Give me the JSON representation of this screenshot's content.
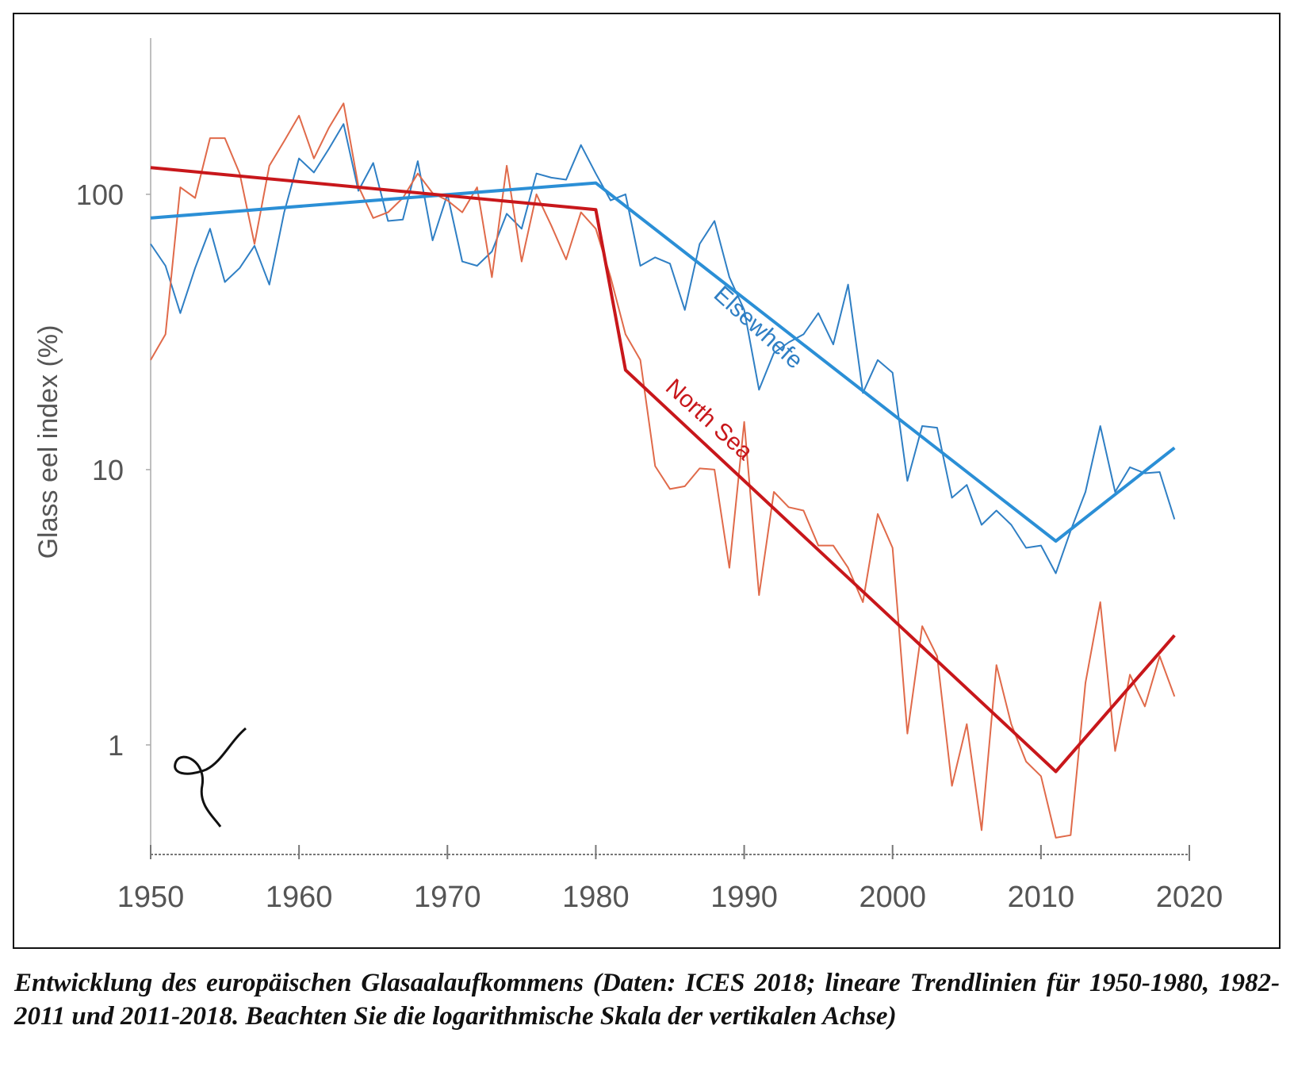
{
  "chart_data": {
    "type": "line",
    "ylabel": "Glass eel index (%)",
    "caption": "Entwicklung des europäischen Glasaalaufkommens (Daten: ICES 2018; lineare Trendlinien für 1950-1980, 1982-2011 und 2011-2018. Beachten Sie die logarithmische Skala der vertikalen Achse)",
    "log_y": true,
    "xlim": [
      1950,
      2020
    ],
    "xticks": [
      1950,
      1960,
      1970,
      1980,
      1990,
      2000,
      2010,
      2020
    ],
    "ylim": [
      0.4,
      400
    ],
    "yticks": [
      1,
      10,
      100
    ],
    "x": [
      1950,
      1951,
      1952,
      1953,
      1954,
      1955,
      1956,
      1957,
      1958,
      1959,
      1960,
      1961,
      1962,
      1963,
      1964,
      1965,
      1966,
      1967,
      1968,
      1969,
      1970,
      1971,
      1972,
      1973,
      1974,
      1975,
      1976,
      1977,
      1978,
      1979,
      1980,
      1981,
      1982,
      1983,
      1984,
      1985,
      1986,
      1987,
      1988,
      1989,
      1990,
      1991,
      1992,
      1993,
      1994,
      1995,
      1996,
      1997,
      1998,
      1999,
      2000,
      2001,
      2002,
      2003,
      2004,
      2005,
      2006,
      2007,
      2008,
      2009,
      2010,
      2011,
      2012,
      2013,
      2014,
      2015,
      2016,
      2017,
      2018,
      2019
    ],
    "series": [
      {
        "color": "#2f7fc4",
        "values": [
          66,
          55,
          37,
          54,
          75,
          48,
          54,
          65,
          47,
          86,
          135,
          120,
          146,
          180,
          103,
          130,
          80,
          81,
          132,
          68,
          100,
          57,
          55,
          62,
          85,
          75,
          119,
          115,
          113,
          151,
          119,
          95,
          100,
          55,
          59,
          56,
          38,
          66,
          80,
          50,
          38,
          19.5,
          26.5,
          29,
          31,
          37,
          28.5,
          47,
          19,
          25,
          22.5,
          9.1,
          14.4,
          14.2,
          7.9,
          8.8,
          6.3,
          7.1,
          6.3,
          5.2,
          5.3,
          4.2,
          6.0,
          8.3,
          14.4,
          8.3,
          10.2,
          9.7,
          9.8,
          6.6
        ]
      },
      {
        "color": "#e06a4a",
        "values": [
          25,
          31,
          106,
          97,
          160,
          160,
          119,
          66,
          127,
          156,
          193,
          135,
          174,
          214,
          107,
          82,
          86,
          97,
          119,
          101,
          95,
          86,
          106,
          50,
          127,
          57,
          100,
          77,
          58,
          86,
          75,
          50,
          31,
          25,
          10.3,
          8.5,
          8.7,
          10.1,
          10.0,
          4.4,
          14.9,
          3.5,
          8.3,
          7.3,
          7.1,
          5.3,
          5.3,
          4.4,
          3.3,
          6.9,
          5.2,
          1.1,
          2.7,
          2.1,
          0.71,
          1.19,
          0.49,
          1.95,
          1.19,
          0.87,
          0.77,
          0.46,
          0.47,
          1.68,
          3.3,
          0.95,
          1.8,
          1.38,
          2.1,
          1.5
        ]
      }
    ],
    "trends": [
      {
        "color": "#2b8fd6",
        "x": [
          1950,
          1980,
          2011,
          2019
        ],
        "values": [
          82,
          110,
          5.5,
          12
        ]
      },
      {
        "color": "#c8171b",
        "x": [
          1950,
          1980,
          1982,
          2011,
          2019
        ],
        "values": [
          125,
          88,
          23,
          0.8,
          2.5
        ]
      }
    ],
    "annotations": [
      {
        "text": "Elsewhefe",
        "color": "#2f7fc4"
      },
      {
        "text": "North Sea",
        "color": "#c8171b"
      }
    ]
  }
}
